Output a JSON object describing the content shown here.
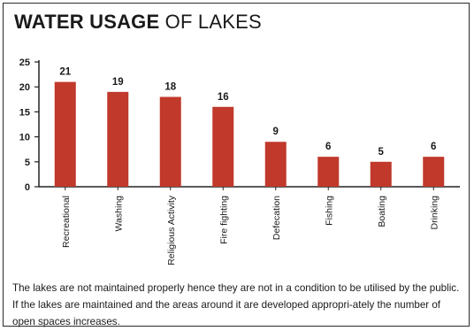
{
  "title": {
    "bold": "WATER USAGE",
    "light": "OF LAKES"
  },
  "caption": "The lakes are not maintained properly hence they are not in a condition to be utilised by the public. If the lakes are maintained and the areas around it are developed appropri-ately the number of open spaces increases.",
  "colors": {
    "bar": "#c0392b",
    "axis": "#222222",
    "text": "#1a1a1a"
  },
  "chart_data": {
    "type": "bar",
    "categories": [
      "Recreational",
      "Washing",
      "Religious Activity",
      "Fire fighting",
      "Defecation",
      "Fishing",
      "Boating",
      "Drinking"
    ],
    "values": [
      21,
      19,
      18,
      16,
      9,
      6,
      5,
      6
    ],
    "ylim": [
      0,
      25
    ],
    "yticks": [
      0,
      5,
      10,
      15,
      20,
      25
    ],
    "xlabel": "",
    "ylabel": "",
    "grid": false,
    "legend": "none"
  }
}
